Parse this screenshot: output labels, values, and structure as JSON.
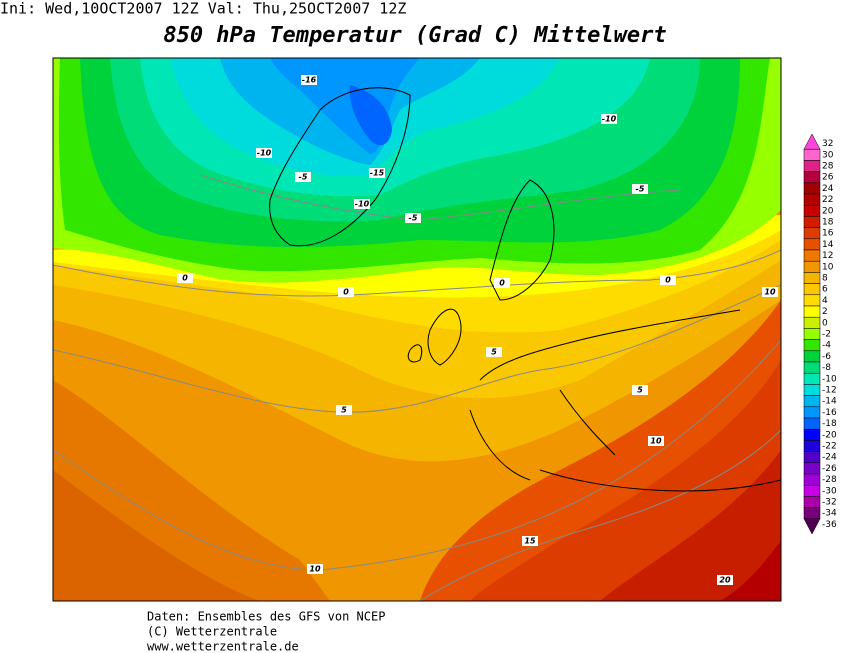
{
  "header": {
    "run_info": "Ini: Wed,10OCT2007 12Z Val: Thu,25OCT2007 12Z",
    "title": "850 hPa Temperatur (Grad C) Mittelwert"
  },
  "map": {
    "contour_labels": [
      "-16",
      "-10",
      "-10",
      "-5",
      "-15",
      "-10",
      "-5",
      "-5",
      "0",
      "0",
      "0",
      "0",
      "10",
      "5",
      "5",
      "5",
      "10",
      "15",
      "10",
      "20"
    ]
  },
  "colorbar": {
    "levels": [
      32,
      30,
      28,
      26,
      24,
      22,
      20,
      18,
      16,
      14,
      12,
      10,
      8,
      6,
      4,
      2,
      0,
      -2,
      -4,
      -6,
      -8,
      -10,
      -12,
      -14,
      -16,
      -18,
      -20,
      -22,
      -24,
      -26,
      -28,
      -30,
      -32,
      -34,
      -36
    ],
    "colors": [
      "#ff44dd",
      "#ff66cc",
      "#dd2288",
      "#b4003c",
      "#a00000",
      "#b40000",
      "#c80000",
      "#d21e00",
      "#dc3c00",
      "#e65000",
      "#f07800",
      "#f09600",
      "#f5b400",
      "#fac800",
      "#ffdc00",
      "#ffff00",
      "#c8f000",
      "#96ff00",
      "#32e600",
      "#00d23c",
      "#00dc78",
      "#00e6b4",
      "#00dcdc",
      "#00b4f0",
      "#0096ff",
      "#0064ff",
      "#0000ff",
      "#1e00dc",
      "#5000c8",
      "#7800c8",
      "#a000dc",
      "#c800e6",
      "#aa00aa",
      "#780078",
      "#500050"
    ]
  },
  "footer": {
    "source": "Daten: Ensembles des GFS von NCEP",
    "copyright": "(C) Wetterzentrale",
    "url": "www.wetterzentrale.de"
  }
}
